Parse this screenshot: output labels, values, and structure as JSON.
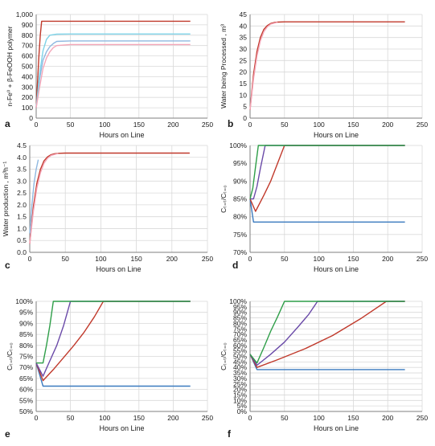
{
  "chart_data": [
    {
      "panel": "a",
      "type": "line",
      "xlabel": "Hours on Line",
      "ylabel": "n-Fe⁰ + β-FeOOH polymer",
      "xlim": [
        0,
        250
      ],
      "ylim": [
        0,
        1000
      ],
      "xticks": [
        0,
        50,
        100,
        150,
        200,
        250
      ],
      "yticks": [
        0,
        100,
        200,
        300,
        400,
        500,
        600,
        700,
        800,
        900,
        1000
      ],
      "ytick_labels": [
        "0",
        "100",
        "200",
        "300",
        "400",
        "500",
        "600",
        "700",
        "800",
        "900",
        "1,000"
      ],
      "grid": true,
      "series": [
        {
          "color": "#c0392b",
          "x": [
            0,
            2,
            4,
            6,
            8,
            10,
            50,
            100,
            150,
            200,
            225
          ],
          "y": [
            100,
            350,
            600,
            800,
            935,
            935,
            935,
            935,
            935,
            935,
            935
          ]
        },
        {
          "color": "#8fb8e0",
          "x": [
            0,
            5,
            10,
            15,
            20,
            25,
            30,
            50,
            100,
            225
          ],
          "y": [
            100,
            380,
            560,
            640,
            690,
            720,
            740,
            745,
            745,
            745
          ]
        },
        {
          "color": "#7fd3e8",
          "x": [
            0,
            5,
            10,
            15,
            20,
            30,
            50,
            100,
            225
          ],
          "y": [
            100,
            430,
            650,
            760,
            800,
            810,
            812,
            812,
            812
          ]
        },
        {
          "color": "#f4a6b8",
          "x": [
            0,
            5,
            10,
            15,
            20,
            25,
            30,
            50,
            100,
            225
          ],
          "y": [
            100,
            300,
            480,
            580,
            640,
            680,
            700,
            710,
            710,
            710
          ]
        }
      ]
    },
    {
      "panel": "b",
      "type": "line",
      "xlabel": "Hours on Line",
      "ylabel": "Water being Processed , m³",
      "xlim": [
        0,
        250
      ],
      "ylim": [
        0,
        45
      ],
      "xticks": [
        0,
        50,
        100,
        150,
        200,
        250
      ],
      "yticks": [
        0,
        5,
        10,
        15,
        20,
        25,
        30,
        35,
        40,
        45
      ],
      "grid": true,
      "series": [
        {
          "color": "#c0392b",
          "x": [
            0,
            5,
            10,
            15,
            20,
            25,
            30,
            35,
            40,
            50,
            100,
            150,
            200,
            225
          ],
          "y": [
            3.6,
            19,
            29,
            35,
            38.5,
            40.2,
            41.1,
            41.5,
            41.7,
            41.8,
            41.8,
            41.8,
            41.8,
            41.8
          ]
        },
        {
          "color": "#f4a6b8",
          "x": [
            0,
            5,
            10,
            15,
            20,
            25,
            30,
            40
          ],
          "y": [
            3.6,
            17,
            27,
            33.5,
            37.5,
            39.6,
            40.8,
            41.6
          ]
        }
      ]
    },
    {
      "panel": "c",
      "type": "line",
      "xlabel": "Hours on Line",
      "ylabel": "Water production , m³h⁻¹",
      "xlim": [
        0,
        250
      ],
      "ylim": [
        0,
        4.5
      ],
      "xticks": [
        0,
        50,
        100,
        150,
        200,
        250
      ],
      "yticks": [
        0,
        0.5,
        1,
        1.5,
        2,
        2.5,
        3,
        3.5,
        4,
        4.5
      ],
      "ytick_labels": [
        "0.0",
        "0.5",
        "1.0",
        "1.5",
        "2.0",
        "2.5",
        "3.0",
        "3.5",
        "4.0",
        "4.5"
      ],
      "grid": true,
      "series": [
        {
          "color": "#c0392b",
          "x": [
            0,
            5,
            10,
            15,
            20,
            25,
            30,
            35,
            40,
            50,
            100,
            150,
            200,
            225
          ],
          "y": [
            0.36,
            1.9,
            2.9,
            3.5,
            3.85,
            4.02,
            4.11,
            4.15,
            4.17,
            4.18,
            4.18,
            4.18,
            4.18,
            4.18
          ]
        },
        {
          "color": "#f4a6b8",
          "x": [
            0,
            5,
            10,
            15,
            20,
            25,
            30,
            40
          ],
          "y": [
            0.36,
            1.7,
            2.7,
            3.35,
            3.75,
            3.96,
            4.08,
            4.16
          ]
        },
        {
          "color": "#8fb8e0",
          "x": [
            0,
            3,
            6,
            9,
            12
          ],
          "y": [
            0.8,
            2.0,
            2.9,
            3.5,
            3.9
          ]
        }
      ]
    },
    {
      "panel": "d",
      "type": "line",
      "xlabel": "Hours on Line",
      "ylabel": "Cₜ₌ₜ/Cₜ₌₀",
      "xlim": [
        0,
        250
      ],
      "ylim": [
        0.7,
        1.0
      ],
      "xticks": [
        0,
        50,
        100,
        150,
        200,
        250
      ],
      "yticks": [
        0.7,
        0.75,
        0.8,
        0.85,
        0.9,
        0.95,
        1.0
      ],
      "ytick_labels": [
        "70%",
        "75%",
        "80%",
        "85%",
        "90%",
        "95%",
        "100%"
      ],
      "grid": true,
      "series": [
        {
          "color": "#3a7abf",
          "x": [
            0,
            5,
            225
          ],
          "y": [
            0.85,
            0.785,
            0.785
          ]
        },
        {
          "color": "#c0392b",
          "x": [
            0,
            8,
            20,
            30,
            40,
            50,
            225
          ],
          "y": [
            0.85,
            0.815,
            0.86,
            0.9,
            0.95,
            1.0,
            1.0
          ]
        },
        {
          "color": "#6a4aa8",
          "x": [
            0,
            5,
            10,
            15,
            22,
            225
          ],
          "y": [
            0.85,
            0.85,
            0.885,
            0.935,
            1.0,
            1.0
          ]
        },
        {
          "color": "#2e9e48",
          "x": [
            0,
            4,
            8,
            12,
            225
          ],
          "y": [
            0.85,
            0.88,
            0.94,
            1.0,
            1.0
          ]
        }
      ]
    },
    {
      "panel": "e",
      "type": "line",
      "xlabel": "Hours on Line",
      "ylabel": "Cₜ₌ₜ/Cₜ₌₀",
      "xlim": [
        0,
        250
      ],
      "ylim": [
        0.5,
        1.0
      ],
      "xticks": [
        0,
        50,
        100,
        150,
        200,
        250
      ],
      "yticks": [
        0.5,
        0.55,
        0.6,
        0.65,
        0.7,
        0.75,
        0.8,
        0.85,
        0.9,
        0.95,
        1.0
      ],
      "ytick_labels": [
        "50%",
        "55%",
        "60%",
        "65%",
        "70%",
        "75%",
        "80%",
        "85%",
        "90%",
        "95%",
        "100%"
      ],
      "grid": true,
      "series": [
        {
          "color": "#3a7abf",
          "x": [
            0,
            10,
            225
          ],
          "y": [
            0.72,
            0.615,
            0.615
          ]
        },
        {
          "color": "#c0392b",
          "x": [
            0,
            10,
            25,
            40,
            55,
            70,
            85,
            98,
            225
          ],
          "y": [
            0.72,
            0.64,
            0.69,
            0.745,
            0.8,
            0.86,
            0.93,
            1.0,
            1.0
          ]
        },
        {
          "color": "#6a4aa8",
          "x": [
            0,
            10,
            20,
            30,
            40,
            50,
            225
          ],
          "y": [
            0.72,
            0.66,
            0.73,
            0.8,
            0.89,
            1.0,
            1.0
          ]
        },
        {
          "color": "#2e9e48",
          "x": [
            0,
            10,
            15,
            20,
            25,
            225
          ],
          "y": [
            0.72,
            0.72,
            0.8,
            0.89,
            1.0,
            1.0
          ]
        }
      ]
    },
    {
      "panel": "f",
      "type": "line",
      "xlabel": "Hours on Line",
      "ylabel": "Cₜ₌ₜ/Cₜ₌₀",
      "xlim": [
        0,
        250
      ],
      "ylim": [
        0,
        1.0
      ],
      "xticks": [
        0,
        50,
        100,
        150,
        200,
        250
      ],
      "yticks": [
        0,
        0.05,
        0.1,
        0.15,
        0.2,
        0.25,
        0.3,
        0.35,
        0.4,
        0.45,
        0.5,
        0.55,
        0.6,
        0.65,
        0.7,
        0.75,
        0.8,
        0.85,
        0.9,
        0.95,
        1.0
      ],
      "ytick_labels": [
        "0%",
        "5%",
        "10%",
        "15%",
        "20%",
        "25%",
        "30%",
        "35%",
        "40%",
        "45%",
        "50%",
        "55%",
        "60%",
        "65%",
        "70%",
        "75%",
        "80%",
        "85%",
        "90%",
        "95%",
        "100%"
      ],
      "grid": true,
      "series": [
        {
          "color": "#3a7abf",
          "x": [
            0,
            10,
            225
          ],
          "y": [
            0.52,
            0.38,
            0.38
          ]
        },
        {
          "color": "#c0392b",
          "x": [
            0,
            10,
            40,
            80,
            120,
            160,
            198,
            225
          ],
          "y": [
            0.52,
            0.4,
            0.47,
            0.57,
            0.69,
            0.84,
            1.0,
            1.0
          ]
        },
        {
          "color": "#6a4aa8",
          "x": [
            0,
            10,
            30,
            50,
            70,
            85,
            98,
            225
          ],
          "y": [
            0.52,
            0.42,
            0.52,
            0.63,
            0.77,
            0.88,
            1.0,
            1.0
          ]
        },
        {
          "color": "#2e9e48",
          "x": [
            0,
            10,
            20,
            30,
            40,
            50,
            225
          ],
          "y": [
            0.52,
            0.44,
            0.58,
            0.73,
            0.86,
            1.0,
            1.0
          ]
        }
      ]
    }
  ]
}
